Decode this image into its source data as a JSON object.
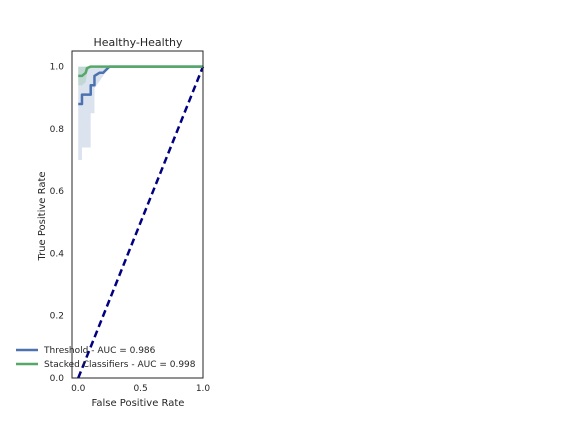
{
  "chart_data": {
    "type": "line",
    "title": "Healthy-Healthy",
    "xlabel": "False Positive Rate",
    "ylabel": "True Positive Rate",
    "xlim": [
      -0.05,
      1.0
    ],
    "ylim": [
      0.0,
      1.05
    ],
    "xticks": [
      "0.0",
      "0.5",
      "1.0"
    ],
    "xtick_values": [
      0.0,
      0.5,
      1.0
    ],
    "yticks": [
      "0.0",
      "0.2",
      "0.4",
      "0.6",
      "0.8",
      "1.0"
    ],
    "ytick_values": [
      0.0,
      0.2,
      0.4,
      0.6,
      0.8,
      1.0
    ],
    "grid": false,
    "legend_position": "lower-left",
    "series": [
      {
        "name": "Threshold - AUC = 0.986",
        "color": "#4c72b0",
        "x": [
          0.0,
          0.03,
          0.03,
          0.06,
          0.1,
          0.1,
          0.13,
          0.13,
          0.17,
          0.2,
          0.25,
          0.35,
          0.5,
          0.7,
          1.0
        ],
        "y": [
          0.88,
          0.88,
          0.91,
          0.91,
          0.91,
          0.94,
          0.94,
          0.97,
          0.98,
          0.98,
          1.0,
          1.0,
          1.0,
          1.0,
          1.0
        ]
      },
      {
        "name": "Stacked Classifiers - AUC = 0.998",
        "color": "#55a868",
        "x": [
          0.0,
          0.03,
          0.06,
          0.07,
          0.1,
          0.2,
          0.3,
          0.5,
          0.7,
          1.0
        ],
        "y": [
          0.97,
          0.97,
          0.98,
          0.995,
          1.0,
          1.0,
          1.0,
          1.0,
          1.0,
          1.0
        ]
      }
    ],
    "confidence_bands": [
      {
        "series": "Threshold - AUC = 0.986",
        "color": "#4c72b0",
        "x": [
          0.0,
          0.03,
          0.03,
          0.1,
          0.1,
          0.13,
          0.13,
          0.2,
          0.25,
          1.0
        ],
        "upper": [
          1.0,
          1.0,
          1.0,
          1.0,
          1.0,
          1.0,
          1.0,
          1.0,
          1.0,
          1.0
        ],
        "lower": [
          0.7,
          0.7,
          0.74,
          0.74,
          0.85,
          0.85,
          0.93,
          0.97,
          1.0,
          1.0
        ]
      },
      {
        "series": "Stacked Classifiers - AUC = 0.998",
        "color": "#55a868",
        "x": [
          0.0,
          0.03,
          0.06,
          0.07,
          0.1,
          1.0
        ],
        "upper": [
          1.0,
          1.0,
          1.0,
          1.0,
          1.0,
          1.0
        ],
        "lower": [
          0.94,
          0.94,
          0.95,
          0.98,
          1.0,
          1.0
        ]
      }
    ],
    "reference_line": {
      "color": "#000080",
      "style": "dashed",
      "x": [
        0.0,
        1.0
      ],
      "y": [
        0.0,
        1.0
      ]
    }
  }
}
